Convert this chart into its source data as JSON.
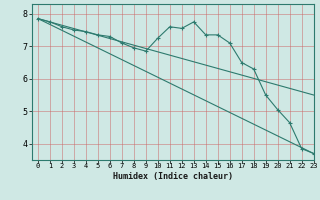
{
  "title": "",
  "xlabel": "Humidex (Indice chaleur)",
  "ylabel": "",
  "bg_color": "#cfe8e4",
  "line_color": "#2d7a6e",
  "xlim": [
    -0.5,
    23
  ],
  "ylim": [
    3.5,
    8.3
  ],
  "yticks": [
    4,
    5,
    6,
    7,
    8
  ],
  "xticks": [
    0,
    1,
    2,
    3,
    4,
    5,
    6,
    7,
    8,
    9,
    10,
    11,
    12,
    13,
    14,
    15,
    16,
    17,
    18,
    19,
    20,
    21,
    22,
    23
  ],
  "series1_x": [
    0,
    1,
    2,
    3,
    4,
    5,
    6,
    7,
    8,
    9,
    10,
    11,
    12,
    13,
    14,
    15,
    16,
    17,
    18,
    19,
    20,
    21,
    22,
    23
  ],
  "series1_y": [
    7.85,
    7.75,
    7.6,
    7.5,
    7.45,
    7.35,
    7.3,
    7.1,
    6.95,
    6.85,
    7.25,
    7.6,
    7.55,
    7.75,
    7.35,
    7.35,
    7.1,
    6.5,
    6.3,
    5.5,
    5.05,
    4.65,
    3.85,
    3.7
  ],
  "series2_x": [
    0,
    23
  ],
  "series2_y": [
    7.85,
    3.7
  ],
  "series3_x": [
    0,
    23
  ],
  "series3_y": [
    7.85,
    5.5
  ]
}
